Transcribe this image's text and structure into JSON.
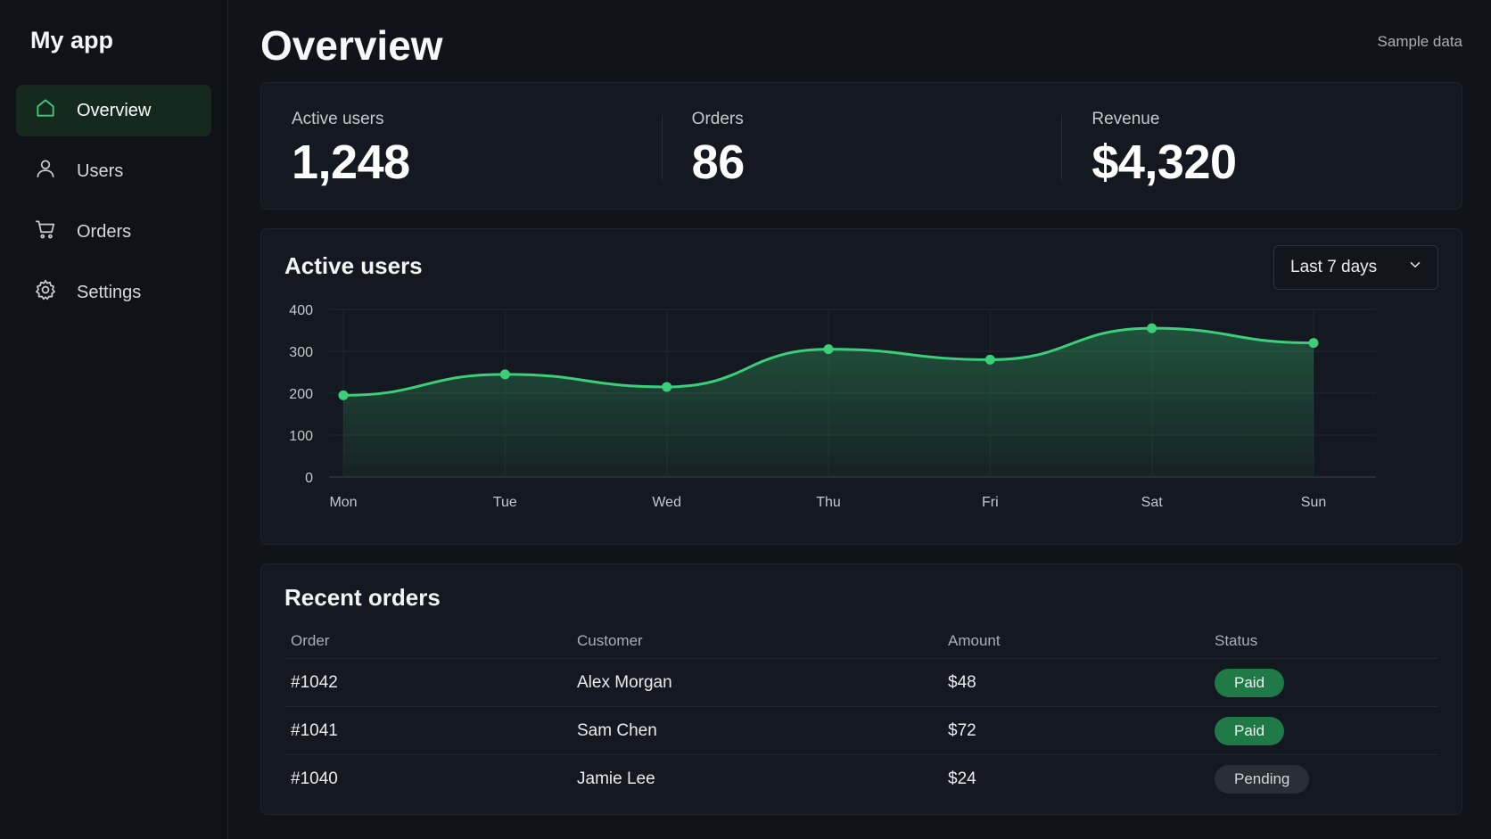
{
  "app": {
    "name": "My app"
  },
  "sidebar": {
    "items": [
      {
        "label": "Overview",
        "icon": "home-icon",
        "active": true
      },
      {
        "label": "Users",
        "icon": "user-icon"
      },
      {
        "label": "Orders",
        "icon": "cart-icon"
      },
      {
        "label": "Settings",
        "icon": "gear-icon"
      }
    ]
  },
  "header": {
    "title": "Overview",
    "note": "Sample data"
  },
  "kpis": [
    {
      "label": "Active users",
      "value": "1,248"
    },
    {
      "label": "Orders",
      "value": "86"
    },
    {
      "label": "Revenue",
      "value": "$4,320"
    }
  ],
  "chart": {
    "title": "Active users",
    "range": {
      "selected": "Last 7 days"
    }
  },
  "chart_data": {
    "type": "area",
    "categories": [
      "Mon",
      "Tue",
      "Wed",
      "Thu",
      "Fri",
      "Sat",
      "Sun"
    ],
    "values": [
      195,
      245,
      215,
      305,
      280,
      355,
      320
    ],
    "ylim": [
      0,
      400
    ],
    "yticks": [
      0,
      100,
      200,
      300,
      400
    ],
    "grid": true,
    "color": "#3ccf7a"
  },
  "orders": {
    "title": "Recent orders",
    "columns": [
      "Order",
      "Customer",
      "Amount",
      "Status"
    ],
    "rows": [
      {
        "order": "#1042",
        "customer": "Alex Morgan",
        "amount": "$48",
        "status": "Paid"
      },
      {
        "order": "#1041",
        "customer": "Sam Chen",
        "amount": "$72",
        "status": "Paid"
      },
      {
        "order": "#1040",
        "customer": "Jamie Lee",
        "amount": "$24",
        "status": "Pending"
      }
    ]
  },
  "colors": {
    "accent": "#3ccf7a",
    "paid": "#1f7a47",
    "pending": "#2a2f37"
  }
}
